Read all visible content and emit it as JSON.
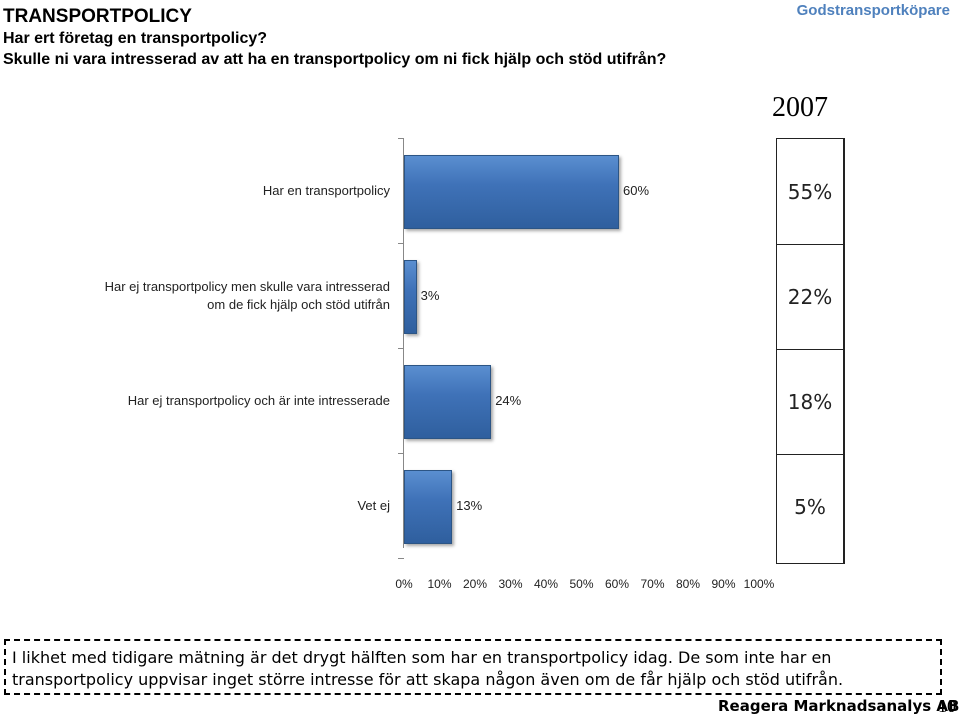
{
  "header": {
    "title": "TRANSPORTPOLICY",
    "subtitle1": "Har ert företag en transportpolicy?",
    "subtitle2": "Skulle ni vara intresserad av att ha en transportpolicy om ni fick hjälp och stöd utifrån?",
    "brand": "Godstransportköpare"
  },
  "comparison": {
    "year": "2007",
    "values": [
      "55%",
      "22%",
      "18%",
      "5%"
    ]
  },
  "chart_data": {
    "type": "bar",
    "orientation": "horizontal",
    "categories": [
      "Har en transportpolicy",
      "Har ej transportpolicy men skulle vara intresserad om de fick hjälp och stöd utifrån",
      "Har ej transportpolicy och är inte intresserade",
      "Vet ej"
    ],
    "category_lines": [
      [
        "Har en transportpolicy"
      ],
      [
        "Har ej transportpolicy men skulle vara intresserad",
        "om de fick hjälp och stöd utifrån"
      ],
      [
        "Har ej transportpolicy och är inte intresserade"
      ],
      [
        "Vet ej"
      ]
    ],
    "values": [
      60,
      3,
      24,
      13
    ],
    "value_labels": [
      "60%",
      "3%",
      "24%",
      "13%"
    ],
    "xlim": [
      0,
      100
    ],
    "xticks": [
      "0%",
      "10%",
      "20%",
      "30%",
      "40%",
      "50%",
      "60%",
      "70%",
      "80%",
      "90%",
      "100%"
    ],
    "grid": false,
    "bar_color": "#3f72b8"
  },
  "note": "I likhet med tidigare mätning är det drygt hälften som har en transportpolicy idag. De som inte har en transportpolicy uppvisar inget större intresse för att skapa någon även om de får hjälp och stöd utifrån.",
  "footer": {
    "brand": "Reagera Marknadsanalys AB",
    "page": "10"
  }
}
